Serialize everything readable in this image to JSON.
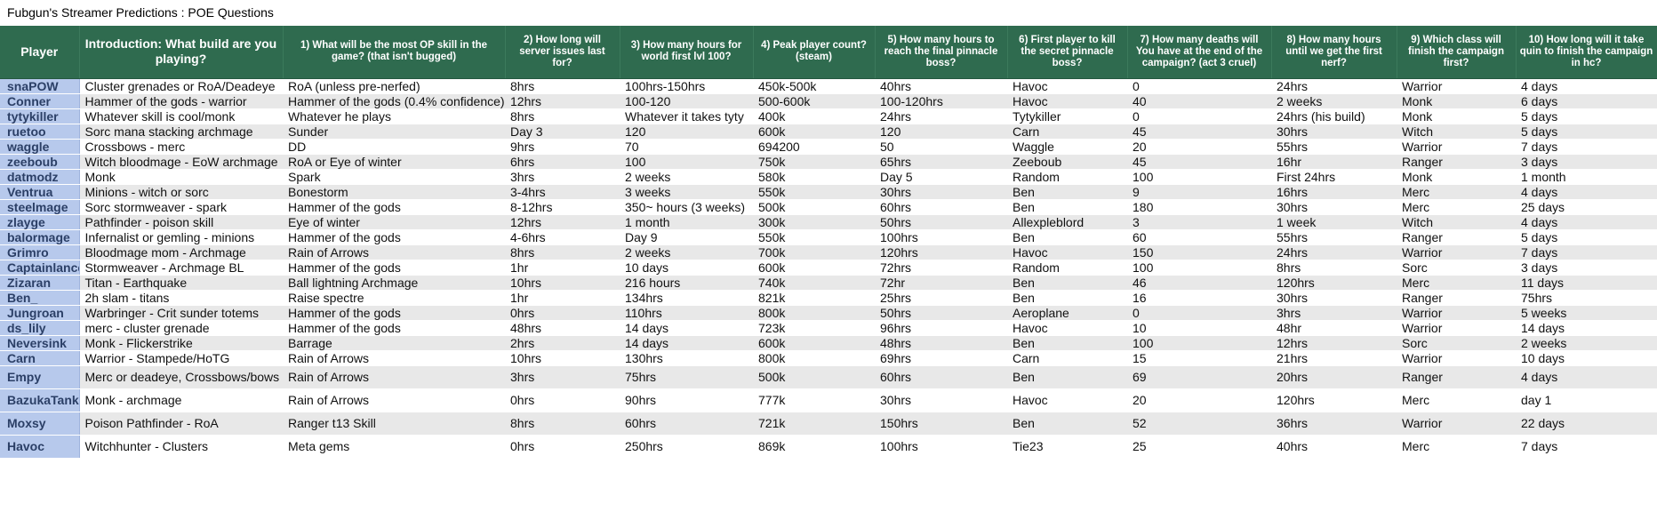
{
  "sheet_title": "Fubgun's Streamer Predictions : POE Questions",
  "headers": [
    "Player",
    "Introduction: What build are you playing?",
    "1) What will be the most OP skill in the game? (that isn't bugged)",
    "2) How long will server issues last for?",
    "3) How many hours for world first lvl 100?",
    "4) Peak player count? (steam)",
    "5) How many hours to reach the final pinnacle boss?",
    "6) First player to kill the secret pinnacle boss?",
    "7) How many deaths will You have at the end of the campaign? (act 3 cruel)",
    "8) How many hours until we get the first nerf?",
    "9) Which class will finish the campaign first?",
    "10) How long will it take quin to finish the campaign in hc?"
  ],
  "rows": [
    [
      "snaPOW",
      "Cluster grenades or RoA/Deadeye",
      "RoA (unless pre-nerfed)",
      "8hrs",
      "100hrs-150hrs",
      "450k-500k",
      "40hrs",
      "Havoc",
      "0",
      "24hrs",
      "Warrior",
      "4 days"
    ],
    [
      "Conner",
      "Hammer of the gods - warrior",
      "Hammer of the gods (0.4% confidence)",
      "12hrs",
      "100-120",
      "500-600k",
      "100-120hrs",
      "Havoc",
      "40",
      "2 weeks",
      "Monk",
      "6 days"
    ],
    [
      "tytykiller",
      "Whatever skill is cool/monk",
      "Whatever he plays",
      "8hrs",
      "Whatever it takes tyty",
      "400k",
      "24hrs",
      "Tytykiller",
      "0",
      "24hrs (his build)",
      "Monk",
      "5 days"
    ],
    [
      "ruetoo",
      "Sorc mana stacking archmage",
      "Sunder",
      "Day 3",
      "120",
      "600k",
      "120",
      "Carn",
      "45",
      "30hrs",
      "Witch",
      "5 days"
    ],
    [
      "waggle",
      "Crossbows - merc",
      "DD",
      "9hrs",
      "70",
      "694200",
      "50",
      "Waggle",
      "20",
      "55hrs",
      "Warrior",
      "7 days"
    ],
    [
      "zeeboub",
      "Witch bloodmage - EoW archmage",
      "RoA or Eye of winter",
      "6hrs",
      "100",
      "750k",
      "65hrs",
      "Zeeboub",
      "45",
      "16hr",
      "Ranger",
      "3 days"
    ],
    [
      "datmodz",
      "Monk",
      "Spark",
      "3hrs",
      "2 weeks",
      "580k",
      "Day 5",
      "Random",
      "100",
      "First 24hrs",
      "Monk",
      "1 month"
    ],
    [
      "Ventrua",
      "Minions - witch or sorc",
      "Bonestorm",
      "3-4hrs",
      "3 weeks",
      "550k",
      "30hrs",
      "Ben",
      "9",
      "16hrs",
      "Merc",
      "4 days"
    ],
    [
      "steelmage",
      "Sorc stormweaver - spark",
      "Hammer of the gods",
      "8-12hrs",
      "350~ hours (3 weeks)",
      "500k",
      "60hrs",
      "Ben",
      "180",
      "30hrs",
      "Merc",
      "25 days"
    ],
    [
      "zlayge",
      "Pathfinder - poison skill",
      "Eye of winter",
      "12hrs",
      "1 month",
      "300k",
      "50hrs",
      "Allexpleblord",
      "3",
      "1 week",
      "Witch",
      "4 days"
    ],
    [
      "balormage",
      "Infernalist or gemling - minions",
      "Hammer of the gods",
      "4-6hrs",
      "Day 9",
      "550k",
      "100hrs",
      "Ben",
      "60",
      "55hrs",
      "Ranger",
      "5 days"
    ],
    [
      "Grimro",
      "Bloodmage mom - Archmage",
      "Rain of Arrows",
      "8hrs",
      "2 weeks",
      "700k",
      "120hrs",
      "Havoc",
      "150",
      "24hrs",
      "Warrior",
      "7 days"
    ],
    [
      "Captainlance",
      "Stormweaver - Archmage BL",
      "Hammer of the gods",
      "1hr",
      "10 days",
      "600k",
      "72hrs",
      "Random",
      "100",
      "8hrs",
      "Sorc",
      "3 days"
    ],
    [
      "Zizaran",
      "Titan - Earthquake",
      "Ball lightning Archmage",
      "10hrs",
      "216 hours",
      "740k",
      "72hr",
      "Ben",
      "46",
      "120hrs",
      "Merc",
      "11 days"
    ],
    [
      "Ben_",
      "2h slam - titans",
      "Raise spectre",
      "1hr",
      "134hrs",
      "821k",
      "25hrs",
      "Ben",
      "16",
      "30hrs",
      "Ranger",
      "75hrs"
    ],
    [
      "Jungroan",
      "Warbringer - Crit sunder totems",
      "Hammer of the gods",
      "0hrs",
      "110hrs",
      "800k",
      "50hrs",
      "Aeroplane",
      "0",
      "3hrs",
      "Warrior",
      "5 weeks"
    ],
    [
      "ds_lily",
      "merc - cluster grenade",
      "Hammer of the gods",
      "48hrs",
      "14 days",
      "723k",
      "96hrs",
      "Havoc",
      "10",
      "48hr",
      "Warrior",
      "14 days"
    ],
    [
      "Neversink",
      "Monk - Flickerstrike",
      "Barrage",
      "2hrs",
      "14 days",
      "600k",
      "48hrs",
      "Ben",
      "100",
      "12hrs",
      "Sorc",
      "2 weeks"
    ],
    [
      "Carn",
      "Warrior - Stampede/HoTG",
      "Rain of Arrows",
      "10hrs",
      "130hrs",
      "800k",
      "69hrs",
      "Carn",
      "15",
      "21hrs",
      "Warrior",
      "10 days"
    ],
    [
      "Empy",
      "Merc or deadeye, Crossbows/bows",
      "Rain of Arrows",
      "3hrs",
      "75hrs",
      "500k",
      "60hrs",
      "Ben",
      "69",
      "20hrs",
      "Ranger",
      "4 days"
    ],
    [
      "BazukaTank",
      "Monk - archmage",
      "Rain of Arrows",
      "0hrs",
      "90hrs",
      "777k",
      "30hrs",
      "Havoc",
      "20",
      "120hrs",
      "Merc",
      "day 1"
    ],
    [
      "Moxsy",
      "Poison Pathfinder - RoA",
      "Ranger t13 Skill",
      "8hrs",
      "60hrs",
      "721k",
      "150hrs",
      "Ben",
      "52",
      "36hrs",
      "Warrior",
      "22 days"
    ],
    [
      "Havoc",
      "Witchhunter - Clusters",
      "Meta gems",
      "0hrs",
      "250hrs",
      "869k",
      "100hrs",
      "Tie23",
      "25",
      "40hrs",
      "Merc",
      "7 days"
    ]
  ],
  "colors": {
    "header_bg": "#2f6b4f",
    "header_text": "#ffffff",
    "player_col_bg": "#b7c9ec",
    "player_col_text": "#2b3f66",
    "alt_row_bg": "#e8e8e8"
  }
}
